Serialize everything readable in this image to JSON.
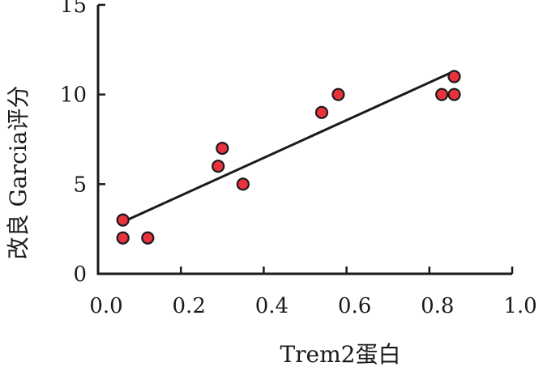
{
  "chart_data": {
    "type": "scatter",
    "xlabel": "Trem2蛋白",
    "ylabel": "改良 Garcia评分",
    "xlim": [
      0.0,
      1.0
    ],
    "ylim": [
      0,
      15
    ],
    "x_ticks": [
      "0.0",
      "0.2",
      "0.4",
      "0.6",
      "0.8",
      "1.0"
    ],
    "y_ticks": [
      "0",
      "5",
      "10",
      "15"
    ],
    "x_tick_values": [
      0.0,
      0.2,
      0.4,
      0.6,
      0.8,
      1.0
    ],
    "y_tick_values": [
      0,
      5,
      10,
      15
    ],
    "grid": false,
    "points": [
      {
        "x": 0.06,
        "y": 3
      },
      {
        "x": 0.06,
        "y": 2
      },
      {
        "x": 0.12,
        "y": 2
      },
      {
        "x": 0.29,
        "y": 6
      },
      {
        "x": 0.3,
        "y": 7
      },
      {
        "x": 0.35,
        "y": 5
      },
      {
        "x": 0.54,
        "y": 9
      },
      {
        "x": 0.58,
        "y": 10
      },
      {
        "x": 0.83,
        "y": 10
      },
      {
        "x": 0.86,
        "y": 10
      },
      {
        "x": 0.86,
        "y": 11
      }
    ],
    "trendline": {
      "x": [
        0.07,
        0.86
      ],
      "y": [
        3.0,
        11.3
      ]
    },
    "colors": {
      "marker_fill": "#e8323e",
      "marker_stroke": "#1a1a1a",
      "line": "#1a1a1a",
      "axis": "#1a1a1a"
    }
  }
}
